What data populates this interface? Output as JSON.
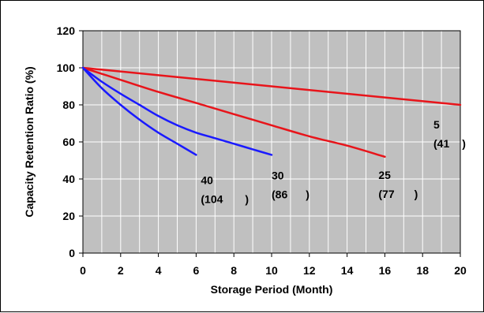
{
  "chart_data": {
    "type": "line",
    "title": "",
    "xlabel": "Storage Period (Month)",
    "ylabel": "Capacity Retention Ratio (%)",
    "xlim": [
      0,
      20
    ],
    "ylim": [
      0,
      120
    ],
    "xticks": [
      0,
      2,
      4,
      6,
      8,
      10,
      12,
      14,
      16,
      18,
      20
    ],
    "yticks": [
      0,
      20,
      40,
      60,
      80,
      100,
      120
    ],
    "grid": true,
    "legend": "none",
    "background_color": "#c0c0c0",
    "grid_color": "#ffffff",
    "series": [
      {
        "label_lines": [
          "5",
          "(41",
          ")"
        ],
        "color": "#e8141a",
        "x": [
          0,
          20
        ],
        "y": [
          100,
          80
        ]
      },
      {
        "label_lines": [
          "25",
          "(77",
          ")"
        ],
        "color": "#e8141a",
        "x": [
          0,
          2,
          4,
          6,
          8,
          10,
          12,
          14,
          16
        ],
        "y": [
          100,
          93.5,
          87,
          81,
          75,
          69,
          63,
          58,
          52
        ]
      },
      {
        "label_lines": [
          "30",
          "(86",
          ")"
        ],
        "color": "#1a1aff",
        "x": [
          0,
          1,
          2,
          3,
          4,
          5,
          6,
          7,
          8,
          9,
          10
        ],
        "y": [
          100,
          92.5,
          86,
          80,
          74,
          69,
          65,
          62,
          59,
          56,
          53
        ]
      },
      {
        "label_lines": [
          "40",
          "(104",
          ")"
        ],
        "color": "#1a1aff",
        "x": [
          0,
          1,
          2,
          3,
          4,
          5,
          6
        ],
        "y": [
          100,
          89,
          80,
          72,
          65,
          59,
          53
        ]
      }
    ]
  }
}
